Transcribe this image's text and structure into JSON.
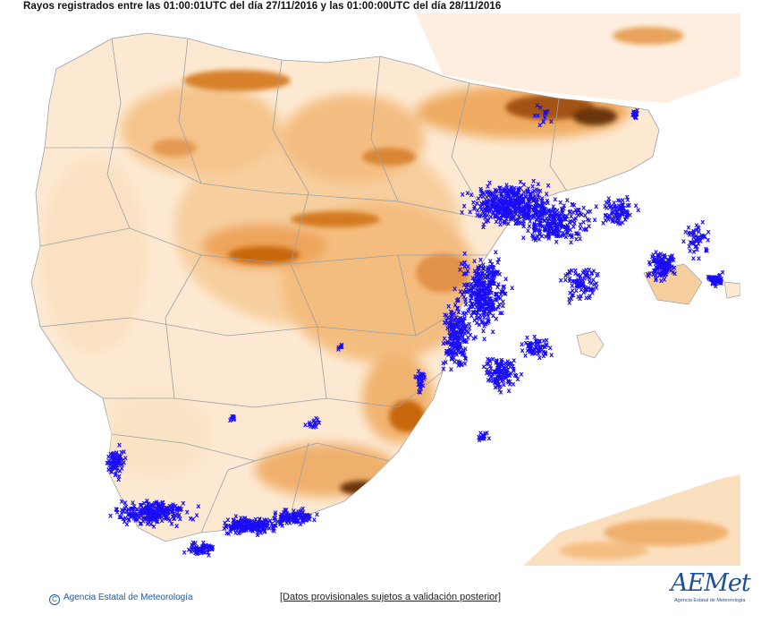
{
  "header": {
    "title": "Rayos registrados entre las 01:00:01UTC del día 27/11/2016 y las 01:00:00UTC del día 28/11/2016"
  },
  "footer": {
    "copyright": "Agencia Estatal de Meteorología",
    "disclaimer": "[Datos provisionales sujetos a validación posterior]",
    "logo_text": "AEMet",
    "logo_subtitle": "Agencia Estatal de Meteorología"
  },
  "map": {
    "region": "Iberian Peninsula",
    "layers": [
      "relief-shading",
      "province-borders",
      "lightning-strikes"
    ],
    "colors": {
      "relief_light": "#fbe3c6",
      "relief_mid": "#f1b473",
      "relief_dark": "#c8670d",
      "relief_peak": "#5a2a06",
      "borders": "#9aa0a6",
      "lightning": "#1a0df5",
      "sea": "#ffffff"
    },
    "lightning_marker": "x"
  }
}
